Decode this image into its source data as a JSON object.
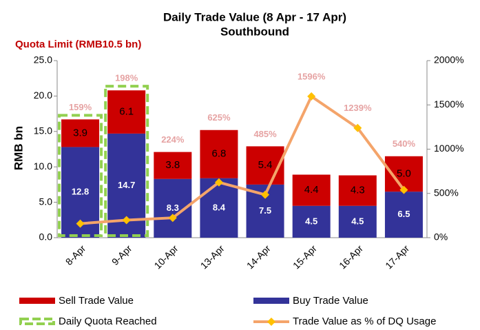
{
  "chart_data": {
    "type": "stacked_bar_line",
    "title": "Daily Trade Value (8 Apr - 17 Apr)",
    "subtitle": "Southbound",
    "annotation": "Quota Limit (RMB10.5 bn)",
    "y_label": "RMB bn",
    "categories": [
      "8-Apr",
      "9-Apr",
      "10-Apr",
      "13-Apr",
      "14-Apr",
      "15-Apr",
      "16-Apr",
      "17-Apr"
    ],
    "series": [
      {
        "name": "Buy Trade Value",
        "color": "#333399",
        "values": [
          12.8,
          14.7,
          8.3,
          8.4,
          7.5,
          4.5,
          4.5,
          6.5
        ]
      },
      {
        "name": "Sell Trade Value",
        "color": "#cc0000",
        "values": [
          3.9,
          6.1,
          3.8,
          6.8,
          5.4,
          4.4,
          4.3,
          5.0
        ],
        "value_labels": [
          "3.9",
          "6.1",
          "3.8",
          "6.8",
          "5.4",
          "4.4",
          "4.3",
          "5.0"
        ]
      },
      {
        "name": "Trade Value as % of DQ Usage",
        "color": "#f4a46a",
        "marker_color": "#ffc000",
        "axis": "y2",
        "values": [
          159,
          198,
          224,
          625,
          485,
          1596,
          1239,
          540
        ],
        "value_labels": [
          "159%",
          "198%",
          "224%",
          "625%",
          "485%",
          "1596%",
          "1239%",
          "540%"
        ]
      }
    ],
    "highlight": {
      "name": "Daily Quota Reached",
      "color": "#92d050",
      "flags": [
        true,
        true,
        false,
        false,
        false,
        false,
        false,
        false
      ]
    },
    "ylim": [
      0,
      25
    ],
    "yticks": [
      {
        "value": 0,
        "label": "0.0"
      },
      {
        "value": 5,
        "label": "5.0"
      },
      {
        "value": 10,
        "label": "10.0"
      },
      {
        "value": 15,
        "label": "15.0"
      },
      {
        "value": 20,
        "label": "20.0"
      },
      {
        "value": 25,
        "label": "25.0"
      }
    ],
    "y2lim": [
      0,
      2000
    ],
    "y2ticks": [
      {
        "value": 0,
        "label": "0%"
      },
      {
        "value": 500,
        "label": "500%"
      },
      {
        "value": 1000,
        "label": "1000%"
      },
      {
        "value": 1500,
        "label": "1500%"
      },
      {
        "value": 2000,
        "label": "2000%"
      }
    ],
    "grid": false
  }
}
